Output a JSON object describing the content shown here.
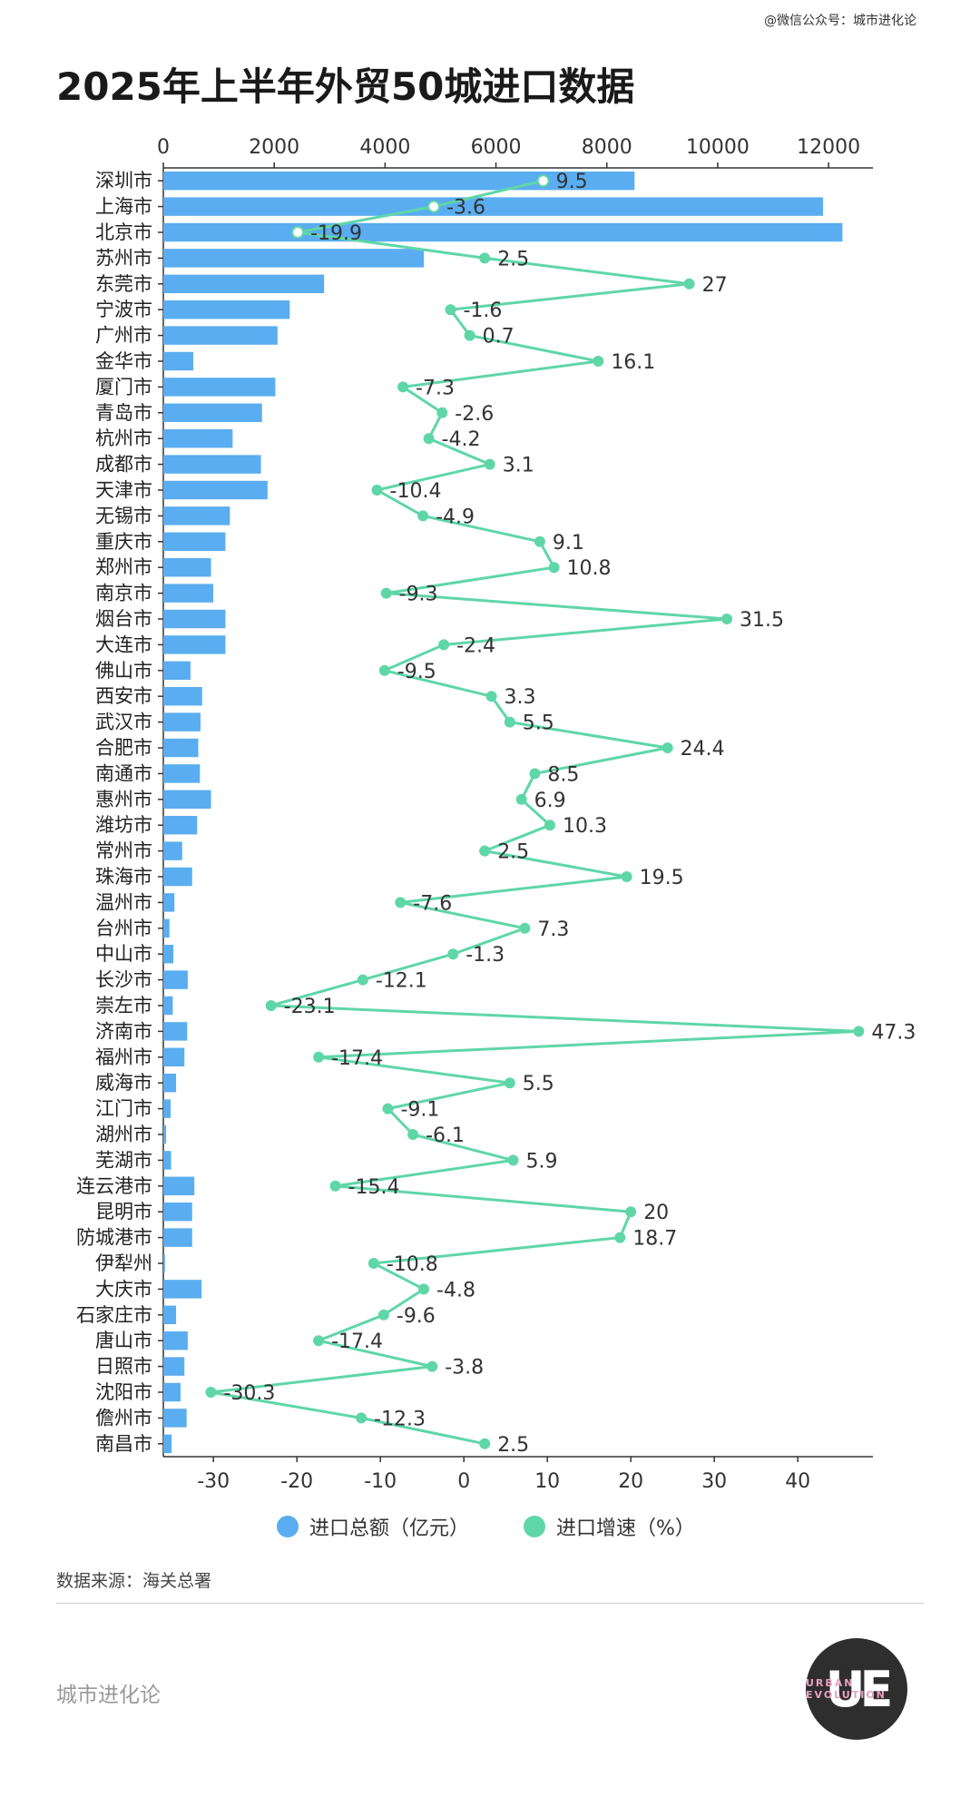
{
  "credit": "@微信公众号：城市进化论",
  "title": "2025年上半年外贸50城进口数据",
  "source": "数据来源：海关总署",
  "brand": "城市进化论",
  "logo": {
    "mark": "UE",
    "text": "URBAN EVOLUTION"
  },
  "legend": [
    {
      "label": "进口总额（亿元）",
      "color": "#5aadf0"
    },
    {
      "label": "进口增速（%）",
      "color": "#5fd6a8"
    }
  ],
  "chart_data": {
    "type": "bar+line",
    "categories": [
      "深圳市",
      "上海市",
      "北京市",
      "苏州市",
      "东莞市",
      "宁波市",
      "广州市",
      "金华市",
      "厦门市",
      "青岛市",
      "杭州市",
      "成都市",
      "天津市",
      "无锡市",
      "重庆市",
      "郑州市",
      "南京市",
      "烟台市",
      "大连市",
      "佛山市",
      "西安市",
      "武汉市",
      "合肥市",
      "南通市",
      "惠州市",
      "潍坊市",
      "常州市",
      "珠海市",
      "温州市",
      "台州市",
      "中山市",
      "长沙市",
      "崇左市",
      "济南市",
      "福州市",
      "威海市",
      "江门市",
      "湖州市",
      "芜湖市",
      "连云港市",
      "昆明市",
      "防城港市",
      "伊犁州",
      "大庆市",
      "石家庄市",
      "唐山市",
      "日照市",
      "沈阳市",
      "儋州市",
      "南昌市"
    ],
    "series": [
      {
        "name": "进口总额（亿元）",
        "type": "bar",
        "color": "#5aadf0",
        "values": [
          8500,
          11900,
          12250,
          4700,
          2900,
          2280,
          2060,
          540,
          2020,
          1780,
          1250,
          1760,
          1880,
          1200,
          1120,
          860,
          900,
          1120,
          1120,
          490,
          700,
          670,
          630,
          660,
          860,
          610,
          340,
          520,
          200,
          110,
          180,
          440,
          170,
          430,
          380,
          230,
          130,
          50,
          140,
          560,
          520,
          520,
          30,
          690,
          230,
          440,
          380,
          310,
          420,
          150
        ]
      },
      {
        "name": "进口增速（%）",
        "type": "line",
        "color": "#5fd6a8",
        "values": [
          9.5,
          -3.6,
          -19.9,
          2.5,
          27,
          -1.6,
          0.7,
          16.1,
          -7.3,
          -2.6,
          -4.2,
          3.1,
          -10.4,
          -4.9,
          9.1,
          10.8,
          -9.3,
          31.5,
          -2.4,
          -9.5,
          3.3,
          5.5,
          24.4,
          8.5,
          6.9,
          10.3,
          2.5,
          19.5,
          -7.6,
          7.3,
          -1.3,
          -12.1,
          -23.1,
          47.3,
          -17.4,
          5.5,
          -9.1,
          -6.1,
          5.9,
          -15.4,
          20,
          18.7,
          -10.8,
          -4.8,
          -9.6,
          -17.4,
          -3.8,
          -30.3,
          -12.3,
          2.5
        ]
      }
    ],
    "top_axis": {
      "ticks": [
        0,
        2000,
        4000,
        6000,
        8000,
        10000,
        12000
      ],
      "range": [
        0,
        12800
      ]
    },
    "bottom_axis": {
      "ticks": [
        -30,
        -20,
        -10,
        0,
        10,
        20,
        30,
        40
      ],
      "range": [
        -36,
        49
      ]
    }
  }
}
